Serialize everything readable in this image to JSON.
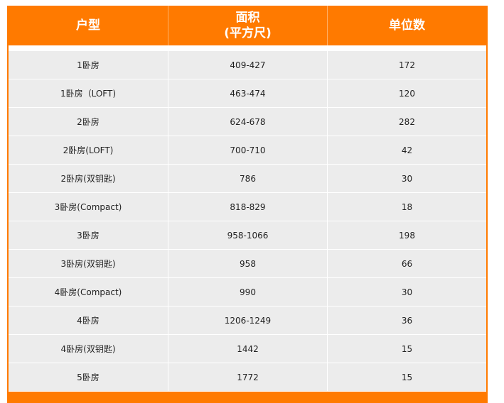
{
  "table": {
    "headers": {
      "unit_type": "户型",
      "area_line1": "面积",
      "area_line2": "(平方尺)",
      "unit_count": "单位数"
    },
    "rows": [
      {
        "type": "1卧房",
        "area": "409-427",
        "count": "172"
      },
      {
        "type": "1卧房（LOFT)",
        "area": "463-474",
        "count": "120"
      },
      {
        "type": "2卧房",
        "area": "624-678",
        "count": "282"
      },
      {
        "type": "2卧房(LOFT)",
        "area": "700-710",
        "count": "42"
      },
      {
        "type": "2卧房(双钥匙)",
        "area": "786",
        "count": "30"
      },
      {
        "type": "3卧房(Compact)",
        "area": "818-829",
        "count": "18"
      },
      {
        "type": "3卧房",
        "area": "958-1066",
        "count": "198"
      },
      {
        "type": "3卧房(双钥匙)",
        "area": "958",
        "count": "66"
      },
      {
        "type": "4卧房(Compact)",
        "area": "990",
        "count": "30"
      },
      {
        "type": "4卧房",
        "area": "1206-1249",
        "count": "36"
      },
      {
        "type": "4卧房(双钥匙)",
        "area": "1442",
        "count": "15"
      },
      {
        "type": "5卧房",
        "area": "1772",
        "count": "15"
      }
    ]
  },
  "colors": {
    "header_bg": "#ff7a00",
    "row_bg": "#ececec",
    "divider": "#ffffff"
  }
}
